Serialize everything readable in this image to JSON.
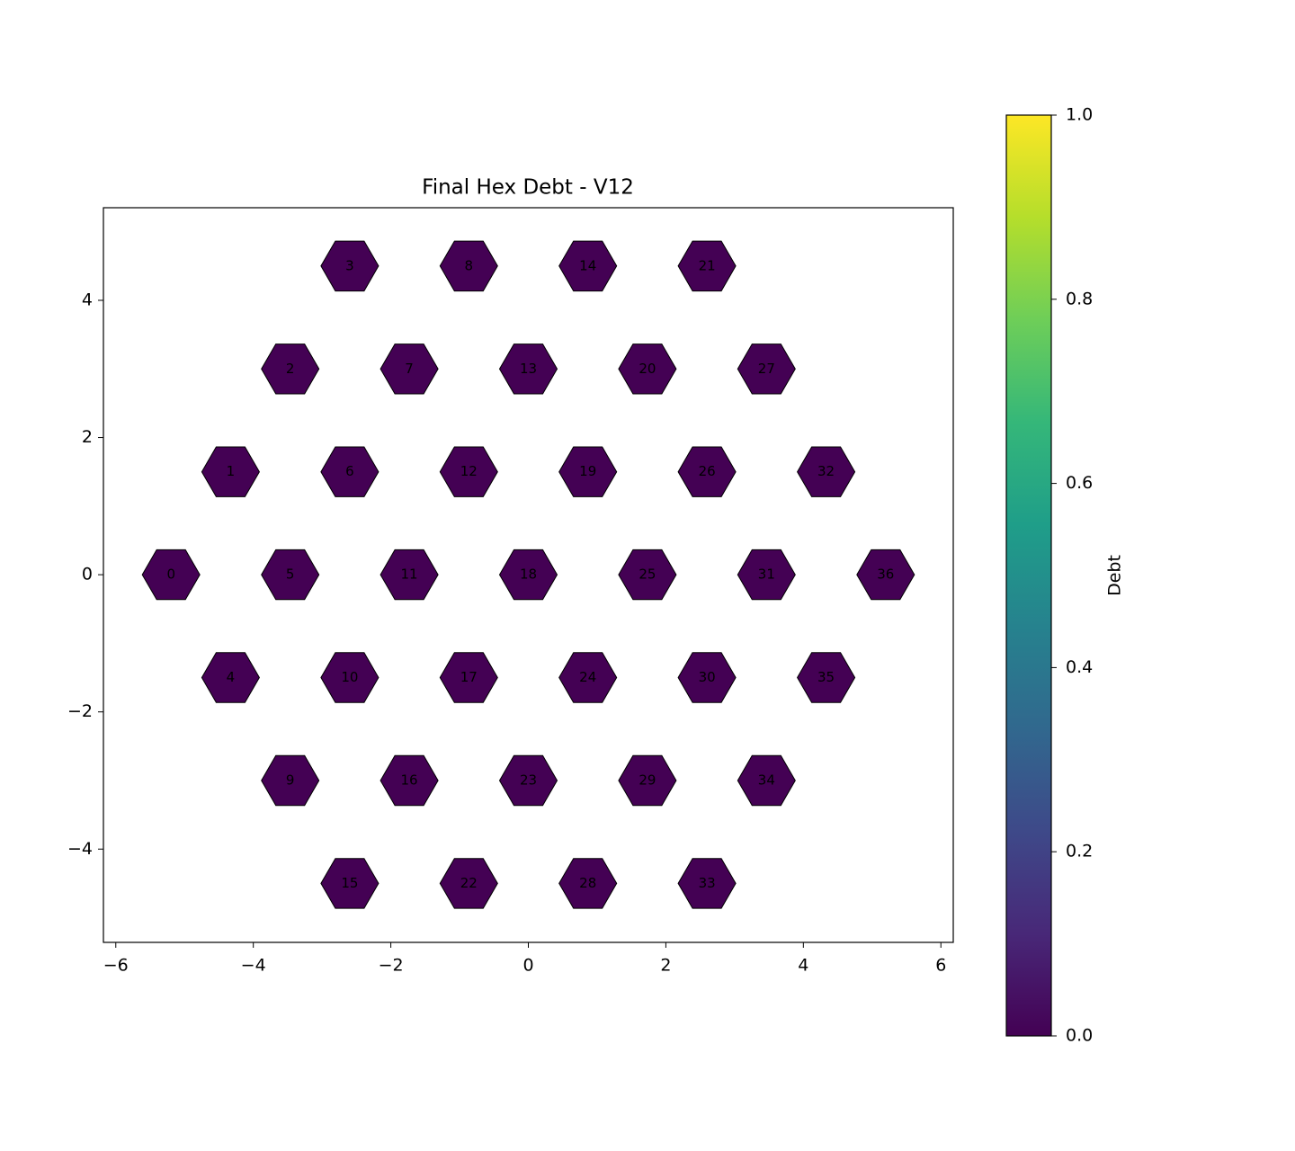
{
  "chart_data": {
    "type": "hexmap",
    "title": "Final Hex Debt - V12",
    "labels": [
      "0",
      "1",
      "2",
      "3",
      "4",
      "5",
      "6",
      "7",
      "8",
      "9",
      "10",
      "11",
      "12",
      "13",
      "14",
      "15",
      "16",
      "17",
      "18",
      "19",
      "20",
      "21",
      "22",
      "23",
      "24",
      "25",
      "26",
      "27",
      "28",
      "29",
      "30",
      "31",
      "32",
      "33",
      "34",
      "35",
      "36"
    ],
    "x": [
      -5.196,
      -4.33,
      -3.464,
      -2.598,
      -4.33,
      -3.464,
      -2.598,
      -1.732,
      -0.866,
      -3.464,
      -2.598,
      -1.732,
      -0.866,
      0,
      0.866,
      -2.598,
      -1.732,
      -0.866,
      0,
      0.866,
      1.732,
      2.598,
      -0.866,
      0,
      0.866,
      1.732,
      2.598,
      3.464,
      0.866,
      1.732,
      2.598,
      3.464,
      4.33,
      2.598,
      3.464,
      4.33,
      5.196
    ],
    "values": [
      0,
      1.5,
      3,
      4.5,
      -1.5,
      0,
      1.5,
      3,
      4.5,
      -3,
      -1.5,
      0,
      1.5,
      3,
      4.5,
      -4.5,
      -3,
      -1.5,
      0,
      1.5,
      3,
      4.5,
      -4.5,
      -3,
      -1.5,
      0,
      1.5,
      3,
      -4.5,
      -3,
      -1.5,
      0,
      1.5,
      -4.5,
      -3,
      -1.5,
      0
    ],
    "debt": [
      0,
      0,
      0,
      0,
      0,
      0,
      0,
      0,
      0,
      0,
      0,
      0,
      0,
      0,
      0,
      0,
      0,
      0,
      0,
      0,
      0,
      0,
      0,
      0,
      0,
      0,
      0,
      0,
      0,
      0,
      0,
      0,
      0,
      0,
      0,
      0,
      0
    ],
    "xlim": [
      -6.18,
      6.18
    ],
    "ylim": [
      -5.36,
      5.35
    ],
    "xticks": [
      {
        "value": -6,
        "label": "−6"
      },
      {
        "value": -4,
        "label": "−4"
      },
      {
        "value": -2,
        "label": "−2"
      },
      0,
      2,
      4,
      6
    ],
    "yticks": [
      {
        "value": -4,
        "label": "−4"
      },
      {
        "value": -2,
        "label": "−2"
      },
      0,
      2,
      4
    ],
    "colorbar": {
      "label": "Debt",
      "lim": [
        0,
        1
      ],
      "ticks": [
        {
          "value": 0,
          "label": "0.0"
        },
        {
          "value": 0.2,
          "label": "0.2"
        },
        {
          "value": 0.4,
          "label": "0.4"
        },
        {
          "value": 0.6,
          "label": "0.6"
        },
        {
          "value": 0.8,
          "label": "0.8"
        },
        {
          "value": 1,
          "label": "1.0"
        }
      ],
      "colormap": [
        "#440154",
        "#482878",
        "#3e4989",
        "#31688e",
        "#26828e",
        "#1f9e89",
        "#35b779",
        "#6ece58",
        "#b5de2b",
        "#fde725"
      ]
    }
  }
}
